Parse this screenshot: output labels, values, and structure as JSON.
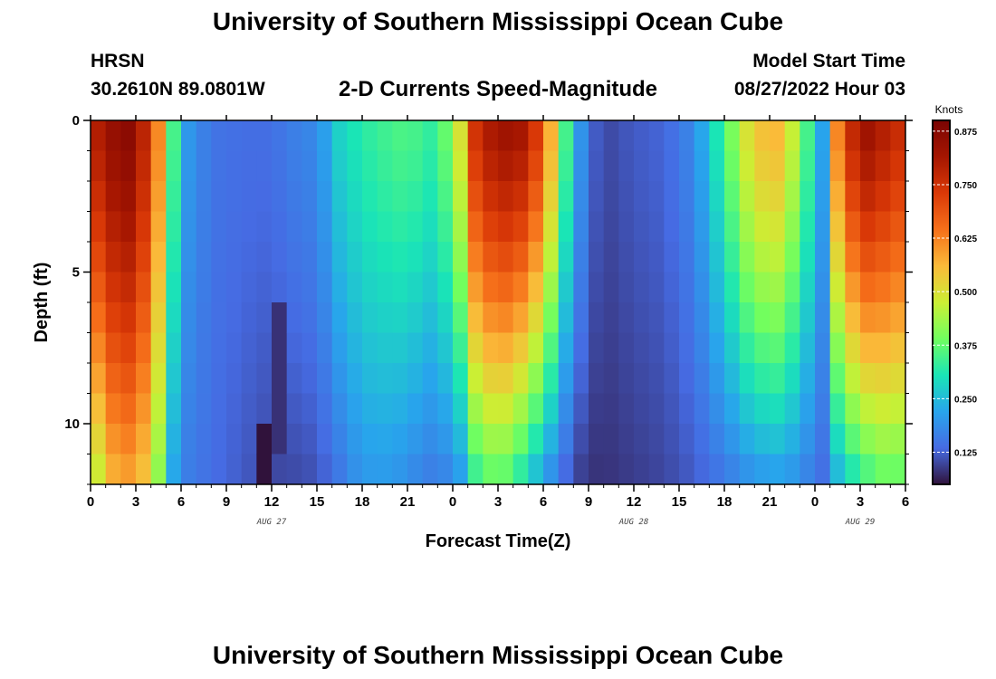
{
  "header": {
    "main_title": "University of Southern Mississippi Ocean Cube",
    "station": "HRSN",
    "coordinates": "30.2610N  89.0801W",
    "chart_title": "2-D Currents Speed-Magnitude",
    "model_label": "Model Start Time",
    "model_time": "08/27/2022 Hour 03"
  },
  "footer": {
    "main_title": "University of Southern Mississippi Ocean Cube"
  },
  "chart_data": {
    "type": "heatmap",
    "title": "2-D Currents Speed-Magnitude",
    "xlabel": "Forecast Time(Z)",
    "ylabel": "Depth (ft)",
    "x_range_hours": [
      0,
      54
    ],
    "x_tick_labels": [
      "0",
      "3",
      "6",
      "9",
      "12",
      "15",
      "18",
      "21",
      "0",
      "3",
      "6",
      "9",
      "12",
      "15",
      "18",
      "21",
      "0",
      "3",
      "6"
    ],
    "date_labels": [
      {
        "text": "AUG 27",
        "hour": 12
      },
      {
        "text": "AUG 28",
        "hour": 36
      },
      {
        "text": "AUG 29",
        "hour": 51
      }
    ],
    "y_range_ft": [
      0,
      12
    ],
    "y_major_ticks": [
      0,
      5,
      10
    ],
    "y_reversed": true,
    "colorbar": {
      "unit": "Knots",
      "min": 0.05,
      "max": 0.9,
      "tick_values": [
        0.125,
        0.25,
        0.375,
        0.5,
        0.625,
        0.75,
        0.875
      ],
      "tick_labels": [
        "0.125",
        "0.250",
        "0.375",
        "0.500",
        "0.625",
        "0.750",
        "0.875"
      ],
      "colormap": "turbo"
    },
    "depth_layers_ft": [
      0.5,
      1.5,
      2.5,
      3.5,
      4.5,
      5.5,
      6.5,
      7.5,
      8.5,
      9.5,
      10.5,
      11.5
    ],
    "time_knots_hours": [
      0,
      1,
      2.5,
      4,
      5,
      5.6,
      6.5,
      8,
      10,
      12,
      13,
      15,
      16.5,
      18,
      20,
      21,
      23,
      24.5,
      25.5,
      27,
      28.5,
      30,
      31,
      32,
      33,
      34,
      36,
      38,
      40,
      42,
      43.5,
      45,
      46,
      47,
      48,
      48.5,
      49,
      51,
      53,
      54
    ],
    "surface_speed_knots": [
      0.76,
      0.84,
      0.87,
      0.74,
      0.5,
      0.32,
      0.2,
      0.15,
      0.14,
      0.14,
      0.16,
      0.18,
      0.28,
      0.32,
      0.35,
      0.36,
      0.32,
      0.5,
      0.75,
      0.84,
      0.82,
      0.7,
      0.45,
      0.25,
      0.14,
      0.1,
      0.12,
      0.13,
      0.18,
      0.35,
      0.5,
      0.58,
      0.55,
      0.4,
      0.3,
      0.22,
      0.55,
      0.85,
      0.78,
      0.75
    ],
    "bottom_speed_knots": [
      0.38,
      0.55,
      0.58,
      0.52,
      0.3,
      0.2,
      0.16,
      0.14,
      0.12,
      0.1,
      0.1,
      0.11,
      0.15,
      0.2,
      0.2,
      0.18,
      0.15,
      0.2,
      0.32,
      0.38,
      0.3,
      0.2,
      0.15,
      0.1,
      0.08,
      0.08,
      0.09,
      0.1,
      0.12,
      0.15,
      0.18,
      0.2,
      0.2,
      0.18,
      0.15,
      0.14,
      0.2,
      0.32,
      0.38,
      0.35
    ],
    "min_speed_patches": [
      {
        "t_start_hours": 11.8,
        "t_end_hours": 12.7,
        "depth_start_ft": 6.5,
        "depth_end_ft": 10.5,
        "speed_knots": 0.08
      },
      {
        "t_start_hours": 11.2,
        "t_end_hours": 11.8,
        "depth_start_ft": 10.5,
        "depth_end_ft": 11.5,
        "speed_knots": 0.04
      }
    ]
  }
}
